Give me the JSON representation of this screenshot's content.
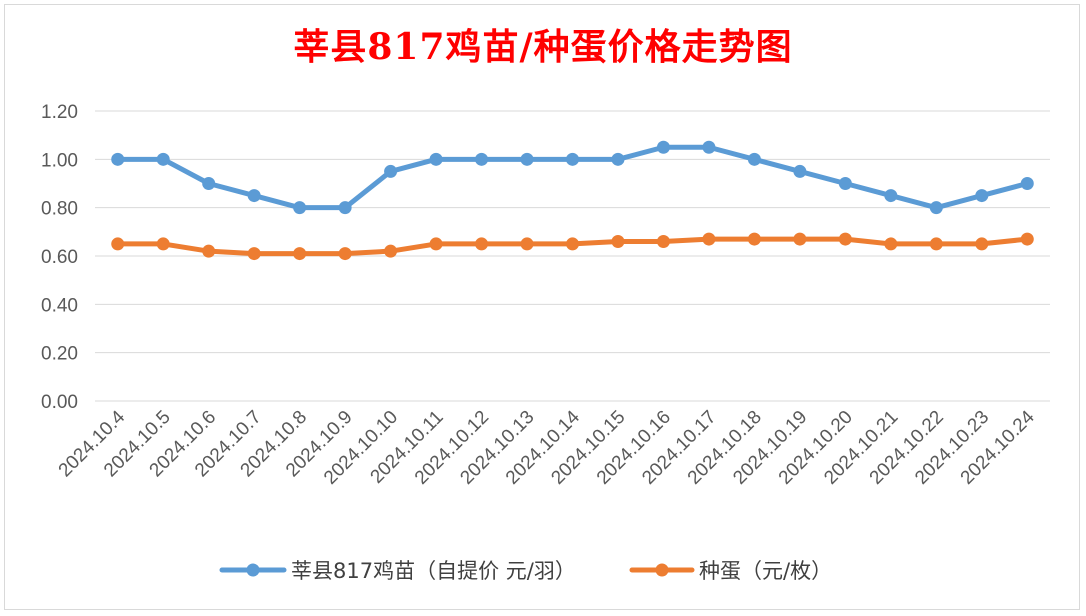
{
  "chart_data": {
    "type": "line",
    "title": "莘县817鸡苗/种蛋价格走势图",
    "xlabel": "",
    "ylabel": "",
    "ylim": [
      0,
      1.2
    ],
    "yticks": [
      "0.00",
      "0.20",
      "0.40",
      "0.60",
      "0.80",
      "1.00",
      "1.20"
    ],
    "grid": "horizontal",
    "legend_position": "bottom",
    "categories": [
      "2024.10.4",
      "2024.10.5",
      "2024.10.6",
      "2024.10.7",
      "2024.10.8",
      "2024.10.9",
      "2024.10.10",
      "2024.10.11",
      "2024.10.12",
      "2024.10.13",
      "2024.10.14",
      "2024.10.15",
      "2024.10.16",
      "2024.10.17",
      "2024.10.18",
      "2024.10.19",
      "2024.10.20",
      "2024.10.21",
      "2024.10.22",
      "2024.10.23",
      "2024.10.24"
    ],
    "series": [
      {
        "name": "莘县817鸡苗（自提价 元/羽）",
        "color": "#5b9bd5",
        "values": [
          1.0,
          1.0,
          0.9,
          0.85,
          0.8,
          0.8,
          0.95,
          1.0,
          1.0,
          1.0,
          1.0,
          1.0,
          1.05,
          1.05,
          1.0,
          0.95,
          0.9,
          0.85,
          0.8,
          0.85,
          0.9
        ]
      },
      {
        "name": "种蛋（元/枚）",
        "color": "#ed7d31",
        "values": [
          0.65,
          0.65,
          0.62,
          0.61,
          0.61,
          0.61,
          0.62,
          0.65,
          0.65,
          0.65,
          0.65,
          0.66,
          0.66,
          0.67,
          0.67,
          0.67,
          0.67,
          0.65,
          0.65,
          0.65,
          0.67
        ]
      }
    ]
  }
}
